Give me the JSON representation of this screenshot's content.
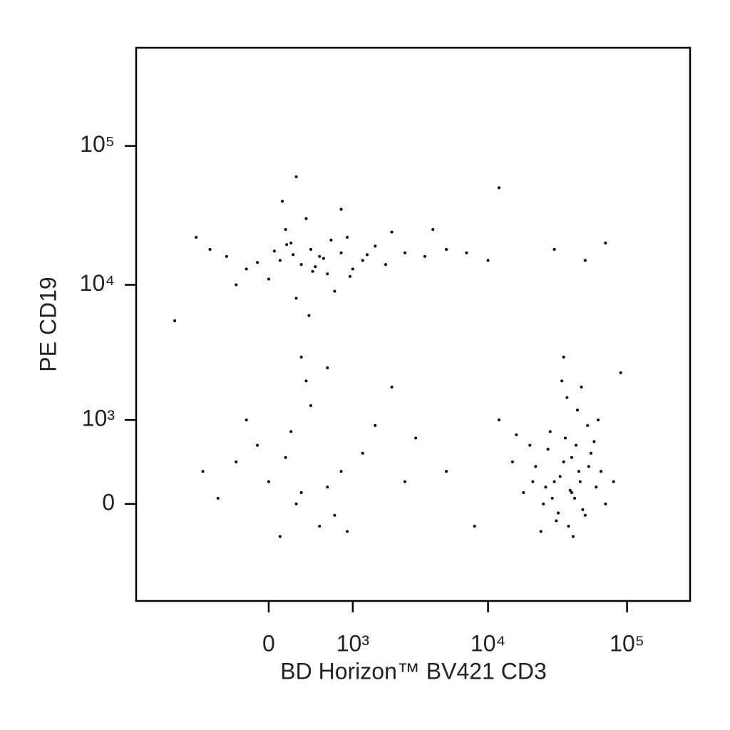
{
  "chart_data": {
    "type": "scatter",
    "x_label": "BD Horizon™ BV421 CD3",
    "y_label": "PE CD19",
    "scale": "biexponential",
    "color": "#000000",
    "xlim": [
      -2350,
      284000
    ],
    "ylim": [
      -1270,
      509000
    ],
    "xticks": [
      0,
      {
        "value": 1000,
        "label": "10³"
      },
      {
        "value": 10000,
        "label": "10⁴"
      },
      {
        "value": 100000,
        "label": "10⁵"
      }
    ],
    "yticks": [
      0,
      {
        "value": 1000,
        "label": "10³"
      },
      {
        "value": 10000,
        "label": "10⁴"
      },
      {
        "value": 100000,
        "label": "10⁵"
      }
    ],
    "x": [
      100,
      300,
      500,
      -200,
      800,
      200,
      600,
      1200,
      0,
      400,
      -400,
      1500,
      2500,
      700,
      150,
      350,
      900,
      -100,
      1000,
      3500,
      -600,
      250,
      550,
      450,
      50,
      1800,
      650,
      5000,
      -300,
      120,
      800,
      7000,
      380,
      220,
      950,
      -800,
      2000,
      420,
      160,
      1300,
      30000,
      50000,
      12000,
      300,
      600,
      10000,
      4000,
      70000,
      250,
      -1200,
      30000,
      40000,
      35000,
      25000,
      50000,
      45000,
      20000,
      60000,
      38000,
      28000,
      42000,
      33000,
      55000,
      22000,
      48000,
      36000,
      26000,
      65000,
      18000,
      52000,
      31000,
      44000,
      40000,
      15000,
      70000,
      37000,
      29000,
      46000,
      24000,
      58000,
      34000,
      12000,
      80000,
      41000,
      27000,
      53000,
      39000,
      21000,
      47000,
      32000,
      62000,
      16000,
      43000,
      35000,
      90000,
      0,
      300,
      -300,
      500,
      200,
      800,
      -500,
      100,
      1200,
      400,
      -100,
      700,
      2500,
      1500,
      -700,
      250,
      600,
      3000,
      900,
      150,
      5000,
      8000,
      -200,
      2000,
      350
    ],
    "values": [
      15000,
      14000,
      16000,
      13000,
      17000,
      20000,
      12000,
      15000,
      11000,
      18000,
      16000,
      19000,
      17000,
      9000,
      25000,
      30000,
      22000,
      14500,
      13000,
      16000,
      18000,
      8000,
      15500,
      13500,
      17500,
      14000,
      21000,
      18000,
      10000,
      40000,
      35000,
      17000,
      6000,
      16500,
      11500,
      22000,
      24000,
      12500,
      19500,
      16500,
      18000,
      15000,
      50000,
      3000,
      2500,
      15000,
      25000,
      20000,
      60000,
      5500,
      200,
      100,
      400,
      0,
      -100,
      300,
      600,
      150,
      -200,
      800,
      50,
      250,
      500,
      350,
      -50,
      700,
      150,
      300,
      100,
      900,
      -150,
      1200,
      450,
      400,
      0,
      1500,
      50,
      200,
      -250,
      650,
      2000,
      1000,
      200,
      -300,
      550,
      350,
      120,
      200,
      1800,
      -80,
      1000,
      750,
      600,
      3000,
      2300,
      200,
      100,
      400,
      -200,
      800,
      300,
      50,
      -300,
      500,
      1300,
      600,
      -100,
      200,
      900,
      300,
      0,
      150,
      700,
      -250,
      450,
      300,
      -200,
      1000,
      1800,
      2000
    ]
  }
}
